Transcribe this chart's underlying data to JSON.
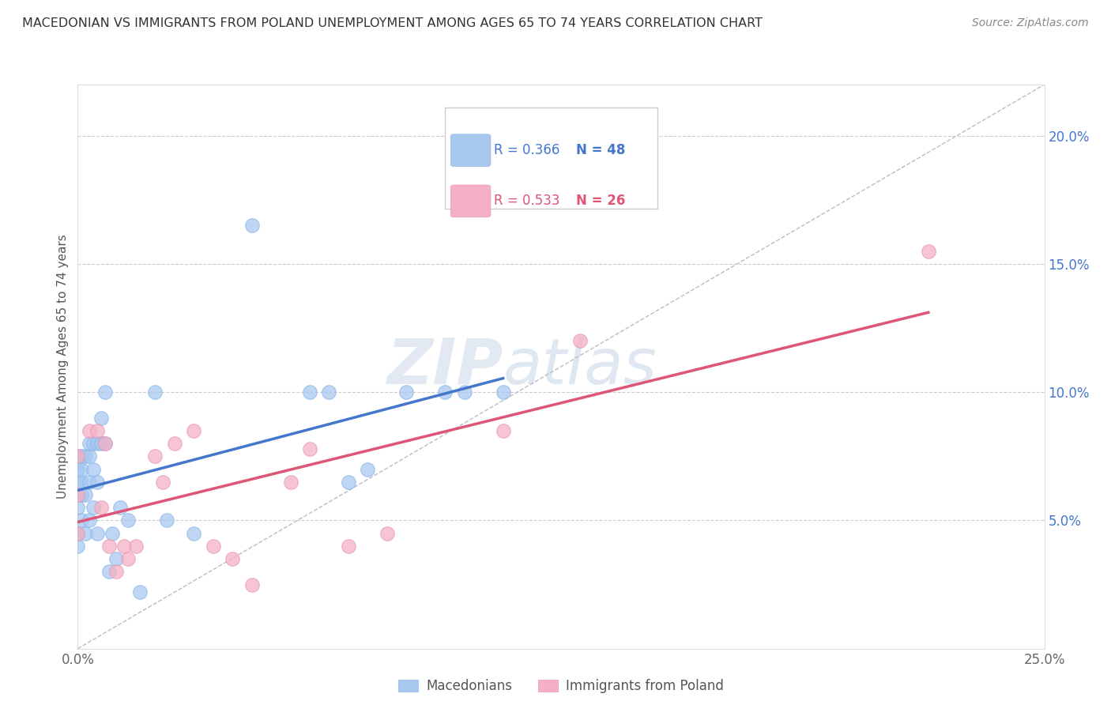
{
  "title": "MACEDONIAN VS IMMIGRANTS FROM POLAND UNEMPLOYMENT AMONG AGES 65 TO 74 YEARS CORRELATION CHART",
  "source": "Source: ZipAtlas.com",
  "ylabel": "Unemployment Among Ages 65 to 74 years",
  "xlim": [
    0.0,
    0.25
  ],
  "ylim": [
    0.0,
    0.22
  ],
  "xticks": [
    0.0,
    0.05,
    0.1,
    0.15,
    0.2,
    0.25
  ],
  "yticks": [
    0.0,
    0.05,
    0.1,
    0.15,
    0.2
  ],
  "legend_blue_r": "0.366",
  "legend_blue_n": "48",
  "legend_pink_r": "0.533",
  "legend_pink_n": "26",
  "blue_label": "Macedonians",
  "pink_label": "Immigrants from Poland",
  "blue_color": "#a8c8f0",
  "pink_color": "#f5b0c5",
  "blue_line_color": "#4477cc",
  "pink_line_color": "#dd5577",
  "diag_line_color": "#bbbbcc",
  "watermark_zip": "ZIP",
  "watermark_atlas": "atlas",
  "blue_x": [
    0.0,
    0.0,
    0.0,
    0.0,
    0.0,
    0.0,
    0.0,
    0.0,
    0.001,
    0.001,
    0.001,
    0.001,
    0.001,
    0.002,
    0.002,
    0.002,
    0.003,
    0.003,
    0.003,
    0.003,
    0.004,
    0.004,
    0.004,
    0.005,
    0.005,
    0.005,
    0.006,
    0.006,
    0.007,
    0.007,
    0.008,
    0.009,
    0.01,
    0.011,
    0.013,
    0.016,
    0.02,
    0.023,
    0.03,
    0.045,
    0.06,
    0.065,
    0.07,
    0.075,
    0.085,
    0.095,
    0.1,
    0.11
  ],
  "blue_y": [
    0.055,
    0.06,
    0.065,
    0.07,
    0.072,
    0.075,
    0.04,
    0.045,
    0.05,
    0.06,
    0.065,
    0.07,
    0.075,
    0.045,
    0.06,
    0.075,
    0.05,
    0.065,
    0.075,
    0.08,
    0.055,
    0.07,
    0.08,
    0.045,
    0.065,
    0.08,
    0.08,
    0.09,
    0.08,
    0.1,
    0.03,
    0.045,
    0.035,
    0.055,
    0.05,
    0.022,
    0.1,
    0.05,
    0.045,
    0.165,
    0.1,
    0.1,
    0.065,
    0.07,
    0.1,
    0.1,
    0.1,
    0.1
  ],
  "pink_x": [
    0.0,
    0.0,
    0.0,
    0.003,
    0.005,
    0.006,
    0.007,
    0.008,
    0.01,
    0.012,
    0.013,
    0.015,
    0.02,
    0.022,
    0.025,
    0.03,
    0.035,
    0.04,
    0.045,
    0.055,
    0.06,
    0.07,
    0.08,
    0.11,
    0.13,
    0.22
  ],
  "pink_y": [
    0.045,
    0.06,
    0.075,
    0.085,
    0.085,
    0.055,
    0.08,
    0.04,
    0.03,
    0.04,
    0.035,
    0.04,
    0.075,
    0.065,
    0.08,
    0.085,
    0.04,
    0.035,
    0.025,
    0.065,
    0.078,
    0.04,
    0.045,
    0.085,
    0.12,
    0.155
  ]
}
